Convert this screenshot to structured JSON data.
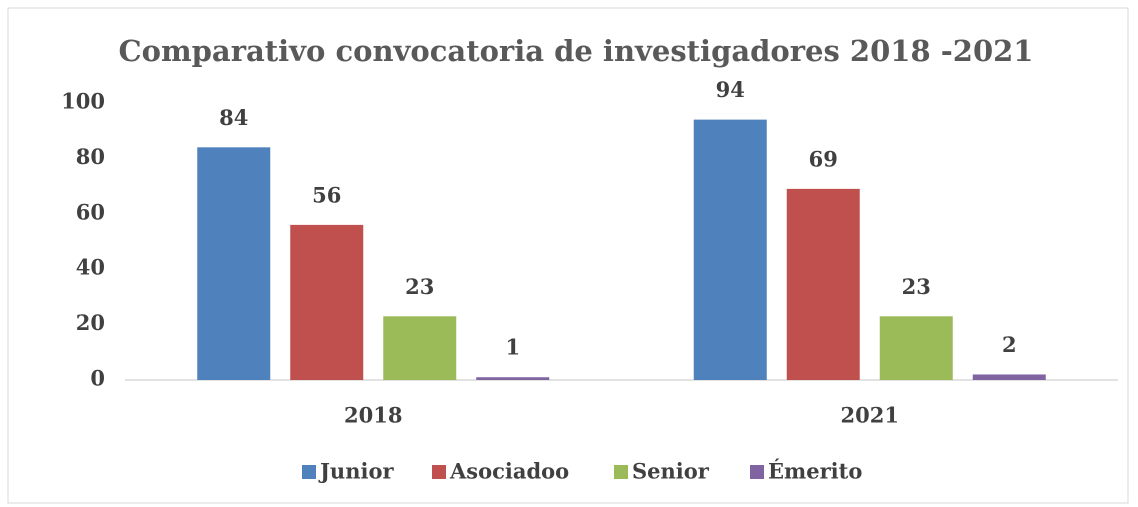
{
  "chart_data": {
    "type": "bar",
    "title": "Comparativo convocatoria de investigadores 2018 -2021",
    "categories": [
      "2018",
      "2021"
    ],
    "series": [
      {
        "name": "Junior",
        "color": "#4f81bd",
        "values": [
          84,
          94
        ]
      },
      {
        "name": "Asociadoo",
        "color": "#c0504d",
        "values": [
          56,
          69
        ]
      },
      {
        "name": "Senior",
        "color": "#9bbb59",
        "values": [
          23,
          23
        ]
      },
      {
        "name": "Émerito",
        "color": "#8064a2",
        "values": [
          1,
          2
        ]
      }
    ],
    "ylim": [
      0,
      100
    ],
    "yticks": [
      0,
      20,
      40,
      60,
      80,
      100
    ],
    "grid": false,
    "legend": "bottom"
  }
}
